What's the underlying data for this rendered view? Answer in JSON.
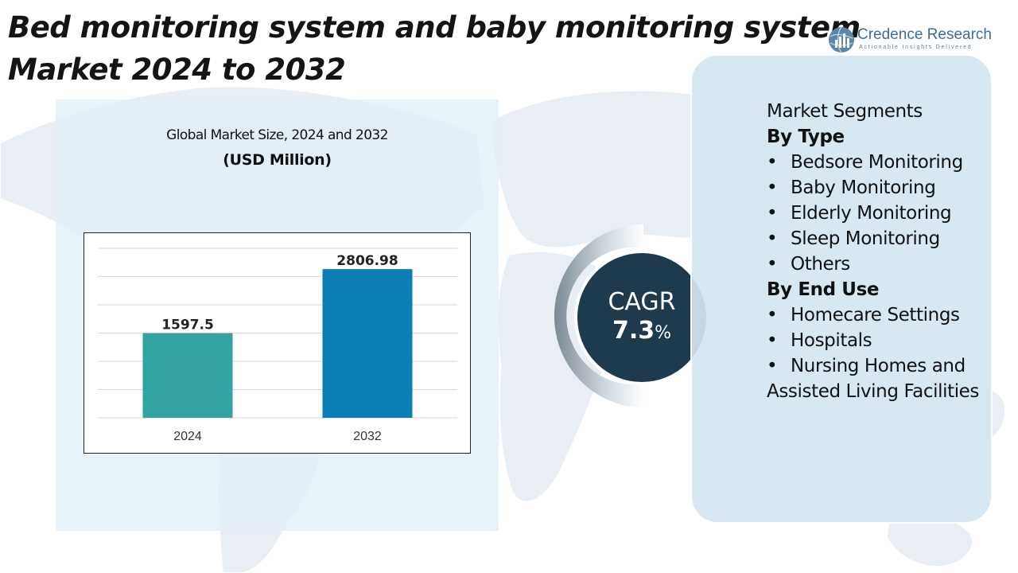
{
  "header": {
    "title_line1": "Bed monitoring system and baby monitoring system",
    "title_line2": "Market 2024 to 2032"
  },
  "brand": {
    "name": "Credence Research",
    "tagline": "Actionable Insights Delivered",
    "logo_icon": "bar-chart-globe-icon"
  },
  "chart_data": {
    "type": "bar",
    "title": "Global Market Size, 2024 and 2032",
    "unit": "(USD Million)",
    "categories": [
      "2024",
      "2032"
    ],
    "values": [
      1597.5,
      2806.98
    ],
    "data_labels": [
      "1597.5",
      "2806.98"
    ],
    "ylim": [
      0,
      3200
    ],
    "grid": true,
    "colors": [
      "#33a3a4",
      "#0b7fb5"
    ]
  },
  "cagr": {
    "label": "CAGR",
    "value": "7.3",
    "unit": "%"
  },
  "segments": {
    "heading": "Market Segments",
    "groups": [
      {
        "title": "By Type",
        "items": [
          "Bedsore Monitoring",
          "Baby Monitoring",
          "Elderly Monitoring",
          "Sleep Monitoring",
          "Others"
        ]
      },
      {
        "title": "By End Use",
        "items": [
          "Homecare Settings",
          "Hospitals",
          "Nursing Homes and Assisted Living Facilities"
        ]
      }
    ]
  },
  "colors": {
    "cagr_circle": "#1d3b4c",
    "panel_bg": "#e2eef7",
    "segment_panel_bg": "#d4e6f1"
  }
}
